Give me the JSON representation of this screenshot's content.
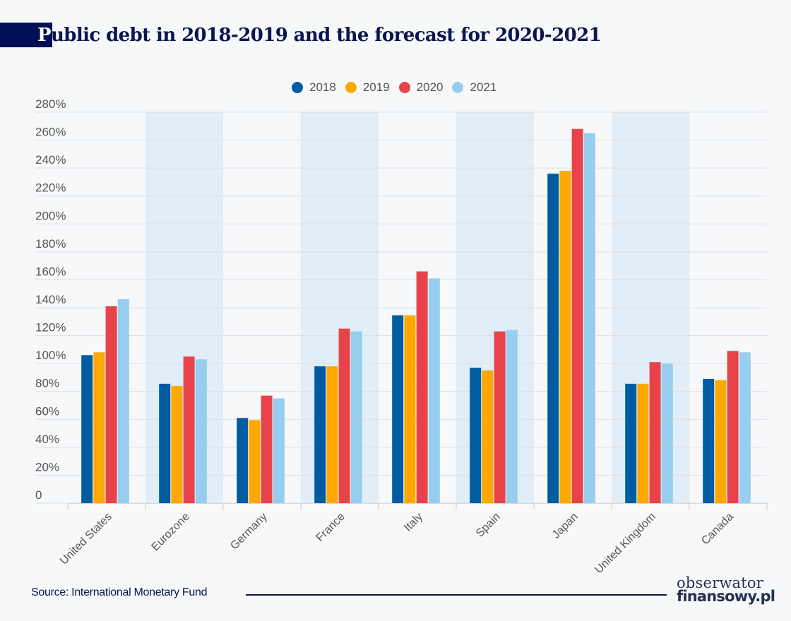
{
  "header": {
    "title_first_letter": "P",
    "title_rest": "ublic debt in 2018-2019 and the forecast for 2020-2021"
  },
  "footer": {
    "source": "Source: International Monetary Fund",
    "logo_line1": "obserwator",
    "logo_line2": "finansowy.pl"
  },
  "chart_data": {
    "type": "bar",
    "title": "Public debt in 2018-2019 and the forecast for 2020-2021",
    "xlabel": "",
    "ylabel": "",
    "ylim": [
      0,
      280
    ],
    "yticks": [
      0,
      20,
      40,
      60,
      80,
      100,
      120,
      140,
      160,
      180,
      200,
      220,
      240,
      260,
      280
    ],
    "ytick_labels": [
      "0",
      "20%",
      "40%",
      "60%",
      "80%",
      "100%",
      "120%",
      "140%",
      "160%",
      "180%",
      "200%",
      "220%",
      "240%",
      "260%",
      "280%"
    ],
    "grid": true,
    "legend_position": "top-center",
    "categories": [
      "United States",
      "Eurozone",
      "Germany",
      "France",
      "Italy",
      "Spain",
      "Japan",
      "United Kingdom",
      "Canada"
    ],
    "series": [
      {
        "name": "2018",
        "color": "#005ca0",
        "values": [
          106,
          85.5,
          61,
          98,
          134.5,
          97,
          236,
          85.5,
          89
        ]
      },
      {
        "name": "2019",
        "color": "#ffa800",
        "values": [
          108,
          84,
          59.5,
          98,
          134.5,
          95,
          238,
          85.5,
          88
        ]
      },
      {
        "name": "2020",
        "color": "#e8424a",
        "values": [
          141,
          105,
          77,
          125,
          166,
          123,
          268,
          101,
          109
        ]
      },
      {
        "name": "2021",
        "color": "#97cdee",
        "values": [
          146,
          103,
          75,
          123,
          161,
          124,
          265,
          100,
          108
        ]
      }
    ],
    "band_color": "#e1edf7",
    "shaded_categories": [
      "Eurozone",
      "France",
      "Spain",
      "United Kingdom"
    ]
  }
}
